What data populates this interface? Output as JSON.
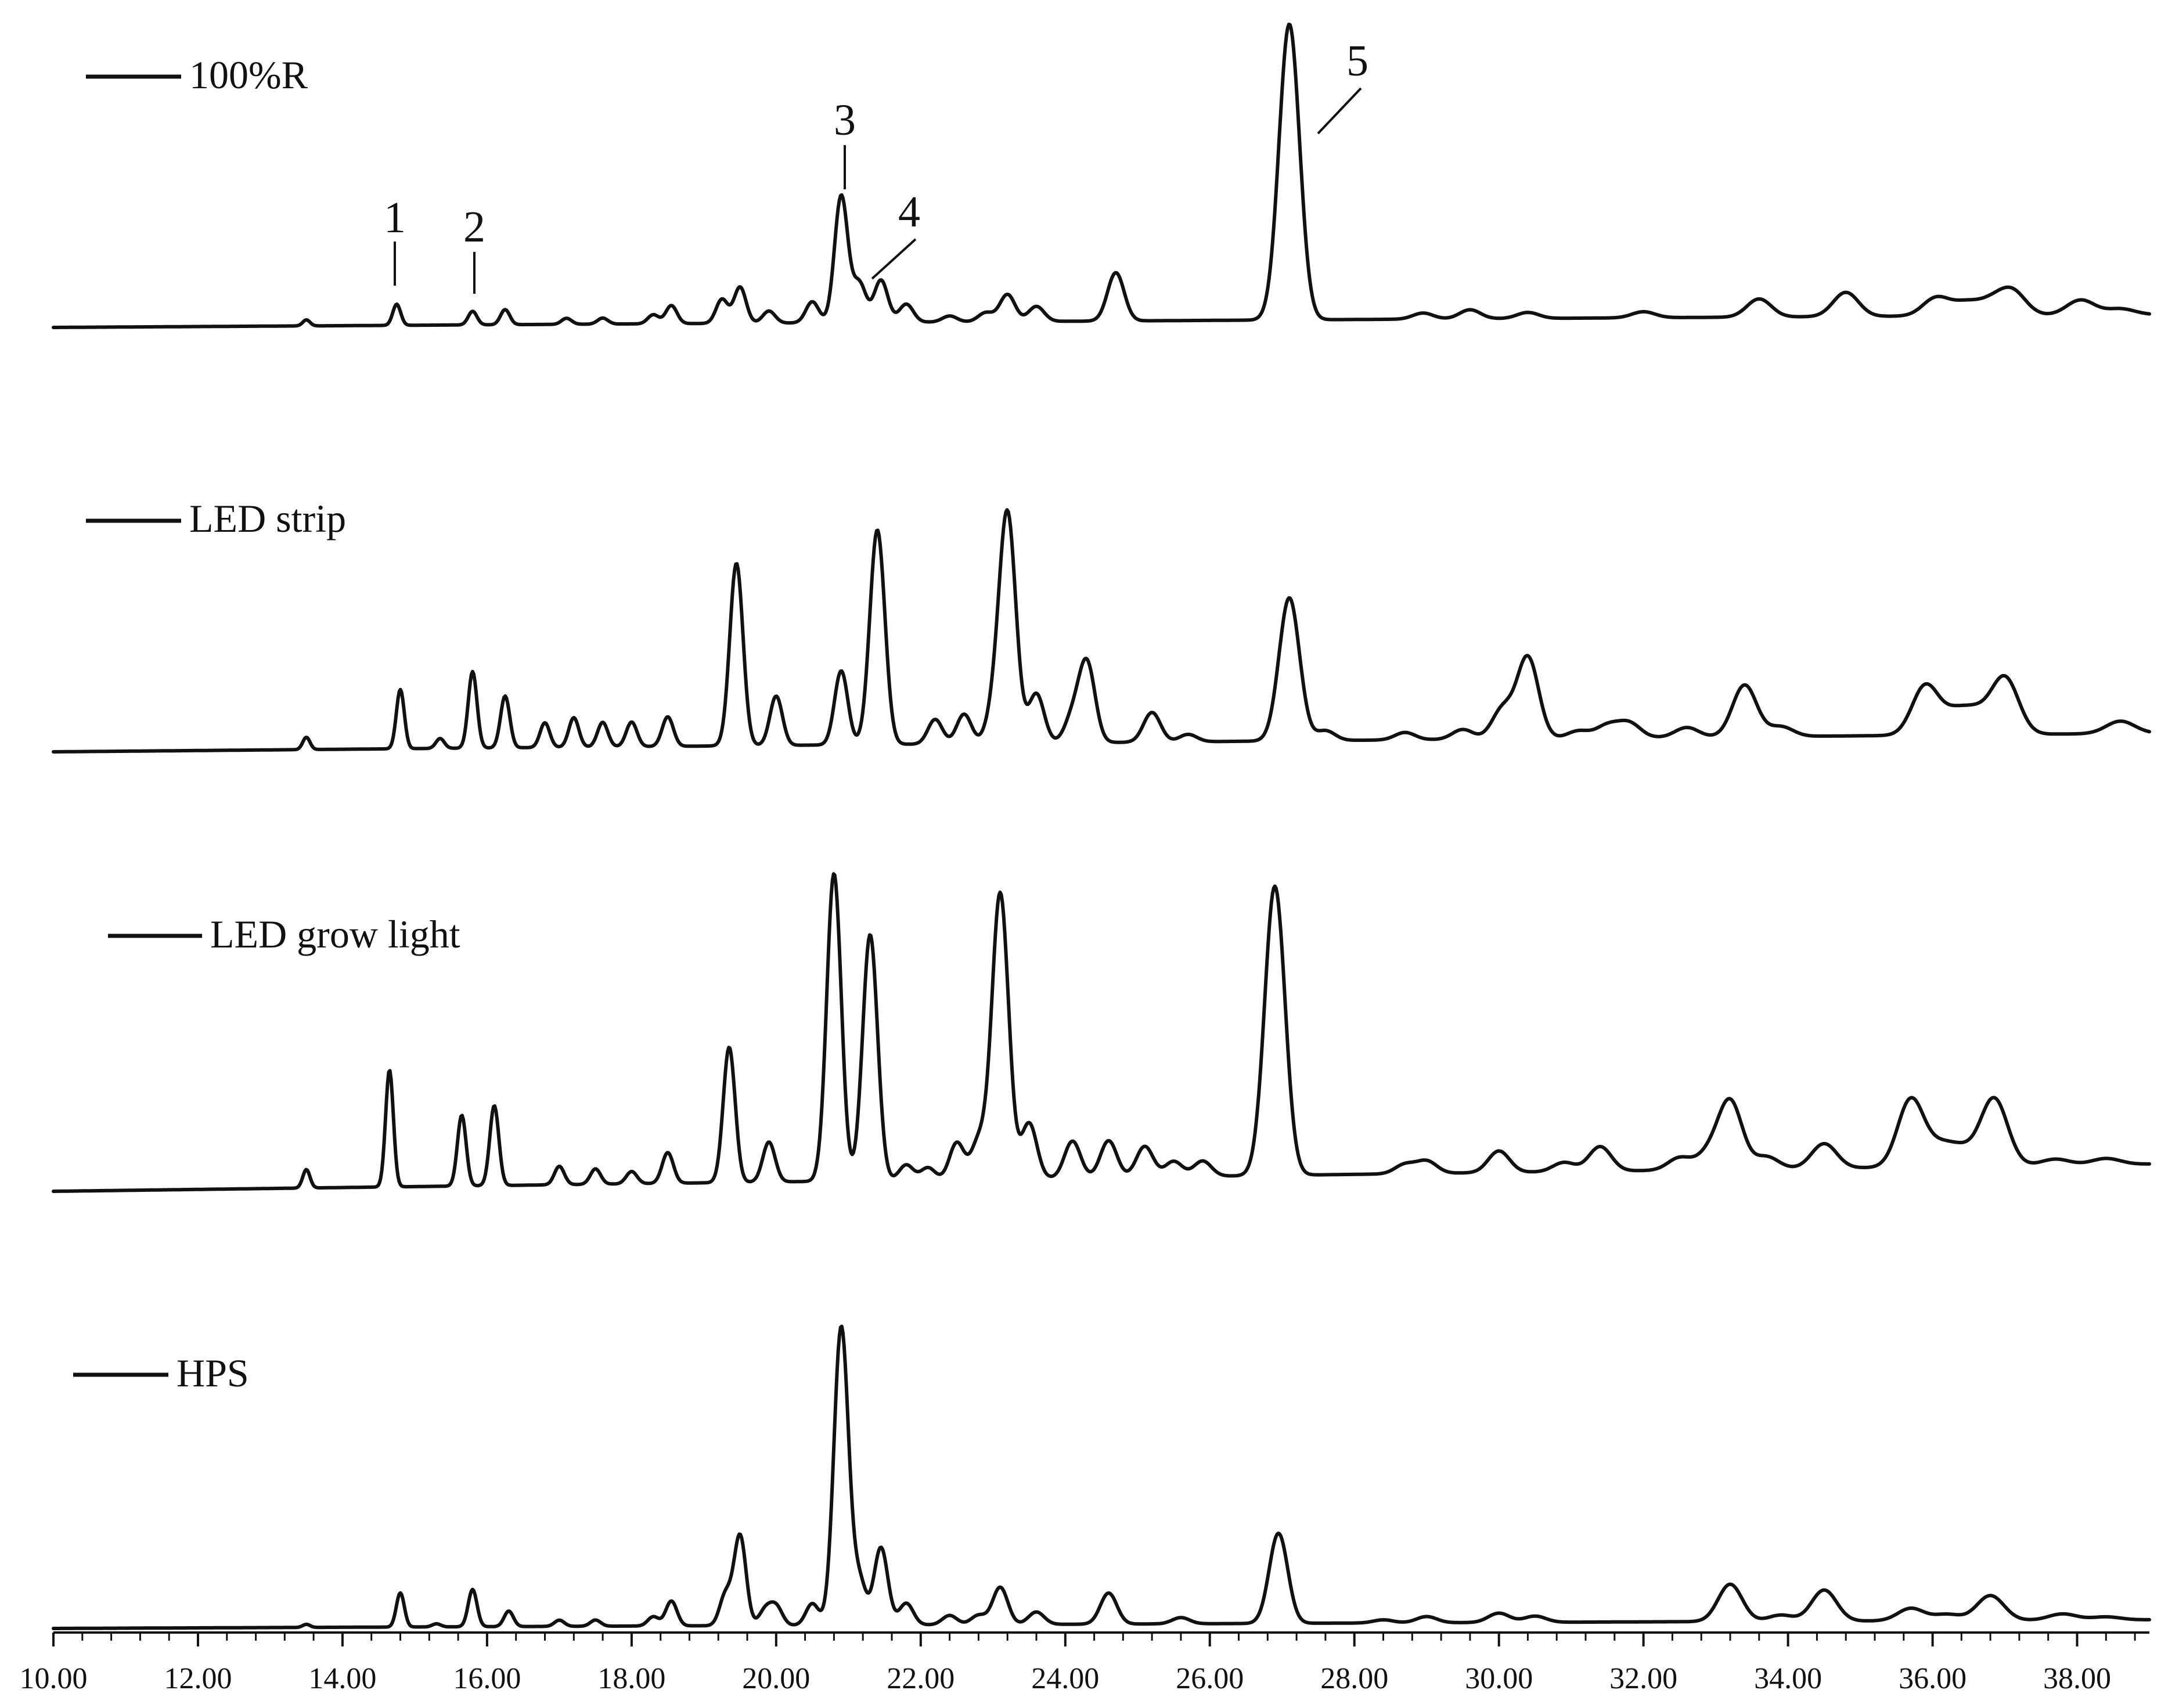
{
  "chart_data": {
    "type": "line",
    "title": "",
    "xlabel": "",
    "ylabel": "",
    "xlim": [
      10,
      39
    ],
    "x_ticks": [
      "10.00",
      "12.00",
      "14.00",
      "16.00",
      "18.00",
      "20.00",
      "22.00",
      "24.00",
      "26.00",
      "28.00",
      "30.00",
      "32.00",
      "34.00",
      "36.00",
      "38.00"
    ],
    "minor_tick_step": 0.4,
    "grid": false,
    "legend": "top-left of each trace",
    "layout": "four vertically stacked chromatograms sharing one x axis",
    "series": [
      {
        "name": "100%R",
        "baseline": 0.0,
        "peaks": [
          {
            "x": 13.5,
            "h": 0.02
          },
          {
            "x": 14.75,
            "h": 0.07
          },
          {
            "x": 15.8,
            "h": 0.045
          },
          {
            "x": 16.25,
            "h": 0.05
          },
          {
            "x": 17.1,
            "h": 0.02
          },
          {
            "x": 17.6,
            "h": 0.02
          },
          {
            "x": 18.3,
            "h": 0.03
          },
          {
            "x": 18.55,
            "h": 0.06
          },
          {
            "x": 19.25,
            "h": 0.08
          },
          {
            "x": 19.5,
            "h": 0.12
          },
          {
            "x": 19.9,
            "h": 0.04
          },
          {
            "x": 20.5,
            "h": 0.07
          },
          {
            "x": 20.9,
            "h": 0.42
          },
          {
            "x": 21.15,
            "h": 0.13
          },
          {
            "x": 21.45,
            "h": 0.14
          },
          {
            "x": 21.8,
            "h": 0.06
          },
          {
            "x": 22.4,
            "h": 0.02
          },
          {
            "x": 22.9,
            "h": 0.03
          },
          {
            "x": 23.2,
            "h": 0.09
          },
          {
            "x": 23.6,
            "h": 0.05
          },
          {
            "x": 24.7,
            "h": 0.16
          },
          {
            "x": 27.1,
            "h": 0.98
          },
          {
            "x": 28.95,
            "h": 0.02
          },
          {
            "x": 29.6,
            "h": 0.03
          },
          {
            "x": 30.4,
            "h": 0.02
          },
          {
            "x": 32.0,
            "h": 0.02
          },
          {
            "x": 33.6,
            "h": 0.06
          },
          {
            "x": 34.8,
            "h": 0.08
          },
          {
            "x": 36.05,
            "h": 0.06
          },
          {
            "x": 36.45,
            "h": 0.04
          },
          {
            "x": 36.8,
            "h": 0.04
          },
          {
            "x": 37.1,
            "h": 0.08
          },
          {
            "x": 38.05,
            "h": 0.05
          },
          {
            "x": 38.6,
            "h": 0.02
          }
        ]
      },
      {
        "name": "LED strip",
        "baseline": 0.0,
        "peaks": [
          {
            "x": 13.5,
            "h": 0.05
          },
          {
            "x": 14.8,
            "h": 0.24
          },
          {
            "x": 15.35,
            "h": 0.04
          },
          {
            "x": 15.8,
            "h": 0.31
          },
          {
            "x": 16.25,
            "h": 0.21
          },
          {
            "x": 16.8,
            "h": 0.1
          },
          {
            "x": 17.2,
            "h": 0.12
          },
          {
            "x": 17.6,
            "h": 0.1
          },
          {
            "x": 18.0,
            "h": 0.1
          },
          {
            "x": 18.5,
            "h": 0.12
          },
          {
            "x": 19.45,
            "h": 0.74
          },
          {
            "x": 20.0,
            "h": 0.2
          },
          {
            "x": 20.9,
            "h": 0.3
          },
          {
            "x": 21.4,
            "h": 0.87
          },
          {
            "x": 22.2,
            "h": 0.1
          },
          {
            "x": 22.6,
            "h": 0.12
          },
          {
            "x": 23.0,
            "h": 0.1
          },
          {
            "x": 23.2,
            "h": 0.93
          },
          {
            "x": 23.6,
            "h": 0.2
          },
          {
            "x": 24.1,
            "h": 0.1
          },
          {
            "x": 24.3,
            "h": 0.32
          },
          {
            "x": 25.2,
            "h": 0.12
          },
          {
            "x": 25.7,
            "h": 0.03
          },
          {
            "x": 27.1,
            "h": 0.58
          },
          {
            "x": 27.6,
            "h": 0.04
          },
          {
            "x": 28.7,
            "h": 0.03
          },
          {
            "x": 29.5,
            "h": 0.04
          },
          {
            "x": 30.05,
            "h": 0.12
          },
          {
            "x": 30.4,
            "h": 0.33
          },
          {
            "x": 31.1,
            "h": 0.03
          },
          {
            "x": 31.5,
            "h": 0.05
          },
          {
            "x": 31.8,
            "h": 0.06
          },
          {
            "x": 32.6,
            "h": 0.04
          },
          {
            "x": 33.4,
            "h": 0.21
          },
          {
            "x": 33.9,
            "h": 0.04
          },
          {
            "x": 35.9,
            "h": 0.2
          },
          {
            "x": 36.3,
            "h": 0.08
          },
          {
            "x": 36.6,
            "h": 0.08
          },
          {
            "x": 37.0,
            "h": 0.23
          },
          {
            "x": 38.6,
            "h": 0.05
          }
        ]
      },
      {
        "name": "LED grow light",
        "baseline": 0.0,
        "peaks": [
          {
            "x": 13.5,
            "h": 0.06
          },
          {
            "x": 14.65,
            "h": 0.38
          },
          {
            "x": 15.65,
            "h": 0.23
          },
          {
            "x": 16.1,
            "h": 0.26
          },
          {
            "x": 17.0,
            "h": 0.06
          },
          {
            "x": 17.5,
            "h": 0.05
          },
          {
            "x": 18.0,
            "h": 0.04
          },
          {
            "x": 18.5,
            "h": 0.1
          },
          {
            "x": 19.35,
            "h": 0.44
          },
          {
            "x": 19.9,
            "h": 0.13
          },
          {
            "x": 20.8,
            "h": 1.0
          },
          {
            "x": 21.3,
            "h": 0.8
          },
          {
            "x": 21.8,
            "h": 0.05
          },
          {
            "x": 22.1,
            "h": 0.04
          },
          {
            "x": 22.5,
            "h": 0.12
          },
          {
            "x": 22.8,
            "h": 0.12
          },
          {
            "x": 23.1,
            "h": 0.93
          },
          {
            "x": 23.5,
            "h": 0.18
          },
          {
            "x": 24.1,
            "h": 0.12
          },
          {
            "x": 24.6,
            "h": 0.12
          },
          {
            "x": 25.1,
            "h": 0.1
          },
          {
            "x": 25.5,
            "h": 0.05
          },
          {
            "x": 25.9,
            "h": 0.05
          },
          {
            "x": 26.9,
            "h": 0.94
          },
          {
            "x": 28.7,
            "h": 0.03
          },
          {
            "x": 29.0,
            "h": 0.04
          },
          {
            "x": 30.0,
            "h": 0.07
          },
          {
            "x": 30.9,
            "h": 0.03
          },
          {
            "x": 31.4,
            "h": 0.08
          },
          {
            "x": 32.5,
            "h": 0.04
          },
          {
            "x": 32.9,
            "h": 0.05
          },
          {
            "x": 33.2,
            "h": 0.22
          },
          {
            "x": 33.7,
            "h": 0.04
          },
          {
            "x": 34.5,
            "h": 0.08
          },
          {
            "x": 35.7,
            "h": 0.22
          },
          {
            "x": 36.1,
            "h": 0.06
          },
          {
            "x": 36.4,
            "h": 0.05
          },
          {
            "x": 36.85,
            "h": 0.22
          },
          {
            "x": 37.7,
            "h": 0.02
          },
          {
            "x": 38.4,
            "h": 0.02
          }
        ]
      },
      {
        "name": "HPS",
        "baseline": 0.0,
        "peaks": [
          {
            "x": 13.5,
            "h": 0.01
          },
          {
            "x": 14.8,
            "h": 0.11
          },
          {
            "x": 15.3,
            "h": 0.01
          },
          {
            "x": 15.8,
            "h": 0.12
          },
          {
            "x": 16.3,
            "h": 0.05
          },
          {
            "x": 17.0,
            "h": 0.02
          },
          {
            "x": 17.5,
            "h": 0.02
          },
          {
            "x": 18.3,
            "h": 0.03
          },
          {
            "x": 18.55,
            "h": 0.08
          },
          {
            "x": 19.3,
            "h": 0.1
          },
          {
            "x": 19.5,
            "h": 0.29
          },
          {
            "x": 19.85,
            "h": 0.05
          },
          {
            "x": 20.0,
            "h": 0.06
          },
          {
            "x": 20.5,
            "h": 0.07
          },
          {
            "x": 20.9,
            "h": 0.96
          },
          {
            "x": 21.15,
            "h": 0.14
          },
          {
            "x": 21.45,
            "h": 0.25
          },
          {
            "x": 21.8,
            "h": 0.07
          },
          {
            "x": 22.4,
            "h": 0.03
          },
          {
            "x": 22.8,
            "h": 0.03
          },
          {
            "x": 23.1,
            "h": 0.12
          },
          {
            "x": 23.6,
            "h": 0.04
          },
          {
            "x": 24.6,
            "h": 0.1
          },
          {
            "x": 25.6,
            "h": 0.02
          },
          {
            "x": 26.95,
            "h": 0.29
          },
          {
            "x": 28.4,
            "h": 0.01
          },
          {
            "x": 29.0,
            "h": 0.02
          },
          {
            "x": 30.0,
            "h": 0.03
          },
          {
            "x": 30.5,
            "h": 0.02
          },
          {
            "x": 33.2,
            "h": 0.12
          },
          {
            "x": 33.9,
            "h": 0.02
          },
          {
            "x": 34.5,
            "h": 0.1
          },
          {
            "x": 35.7,
            "h": 0.04
          },
          {
            "x": 36.2,
            "h": 0.02
          },
          {
            "x": 36.8,
            "h": 0.08
          },
          {
            "x": 37.8,
            "h": 0.02
          },
          {
            "x": 38.4,
            "h": 0.01
          }
        ]
      }
    ],
    "annotations": [
      {
        "label": "1",
        "x": 14.75,
        "series": "100%R"
      },
      {
        "label": "2",
        "x": 15.8,
        "series": "100%R"
      },
      {
        "label": "3",
        "x": 20.9,
        "series": "100%R"
      },
      {
        "label": "4",
        "x": 21.2,
        "series": "100%R"
      },
      {
        "label": "5",
        "x": 27.5,
        "series": "100%R"
      }
    ]
  }
}
